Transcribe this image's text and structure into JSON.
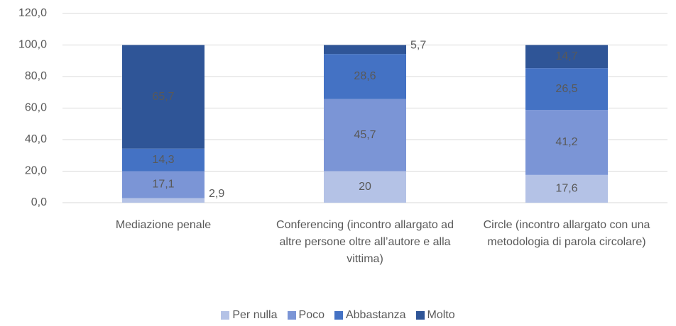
{
  "chart_data": {
    "type": "stacked_bar",
    "categories": [
      "Mediazione penale",
      "Conferencing (incontro allargato ad altre persone oltre all’autore e alla vittima)",
      "Circle (incontro allargato con una metodologia di parola circolare)"
    ],
    "series": [
      {
        "name": "Per nulla",
        "color": "#b4c2e6",
        "values": [
          2.9,
          20,
          17.6
        ],
        "value_labels": [
          "2,9",
          "20",
          "17,6"
        ]
      },
      {
        "name": "Poco",
        "color": "#7b95d6",
        "values": [
          17.1,
          45.7,
          41.2
        ],
        "value_labels": [
          "17,1",
          "45,7",
          "41,2"
        ]
      },
      {
        "name": "Abbastanza",
        "color": "#4472c4",
        "values": [
          14.3,
          28.6,
          26.5
        ],
        "value_labels": [
          "14,3",
          "28,6",
          "26,5"
        ]
      },
      {
        "name": "Molto",
        "color": "#2f5597",
        "values": [
          65.7,
          5.7,
          14.7
        ],
        "value_labels": [
          "65,7",
          "5,7",
          "14,7"
        ]
      }
    ],
    "ylim": [
      0,
      120
    ],
    "yticks": [
      {
        "value": 0,
        "label": "0,0"
      },
      {
        "value": 20,
        "label": "20,0"
      },
      {
        "value": 40,
        "label": "40,0"
      },
      {
        "value": 60,
        "label": "60,0"
      },
      {
        "value": 80,
        "label": "80,0"
      },
      {
        "value": 100,
        "label": "100,0"
      },
      {
        "value": 120,
        "label": "120,0"
      }
    ],
    "grid": true,
    "legend": "bottom"
  }
}
